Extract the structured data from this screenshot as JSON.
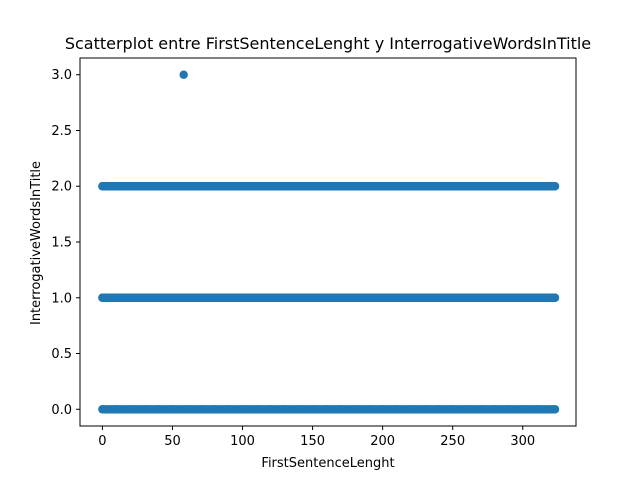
{
  "chart_data": {
    "type": "scatter",
    "title": "Scatterplot entre FirstSentenceLenght y InterrogativeWordsInTitle",
    "xlabel": "FirstSentenceLenght",
    "ylabel": "InterrogativeWordsInTitle",
    "xlim": [
      -16,
      338
    ],
    "ylim": [
      -0.15,
      3.15
    ],
    "xticks": [
      0,
      50,
      100,
      150,
      200,
      250,
      300
    ],
    "yticks": [
      0.0,
      0.5,
      1.0,
      1.5,
      2.0,
      2.5,
      3.0
    ],
    "xtick_labels": [
      "0",
      "50",
      "100",
      "150",
      "200",
      "250",
      "300"
    ],
    "ytick_labels": [
      "0.0",
      "0.5",
      "1.0",
      "1.5",
      "2.0",
      "2.5",
      "3.0"
    ],
    "grid": false,
    "marker_color": "#1f77b4",
    "series": [
      {
        "points": [
          {
            "x": 58,
            "y": 3
          },
          {
            "x": 0,
            "y": 2
          },
          {
            "x": 10,
            "y": 2
          },
          {
            "x": 20,
            "y": 2
          },
          {
            "x": 30,
            "y": 2
          },
          {
            "x": 40,
            "y": 2
          },
          {
            "x": 50,
            "y": 2
          },
          {
            "x": 60,
            "y": 2
          },
          {
            "x": 70,
            "y": 2
          },
          {
            "x": 80,
            "y": 2
          },
          {
            "x": 90,
            "y": 2
          },
          {
            "x": 100,
            "y": 2
          },
          {
            "x": 110,
            "y": 2
          },
          {
            "x": 120,
            "y": 2
          },
          {
            "x": 130,
            "y": 2
          },
          {
            "x": 140,
            "y": 2
          },
          {
            "x": 150,
            "y": 2
          },
          {
            "x": 160,
            "y": 2
          },
          {
            "x": 170,
            "y": 2
          },
          {
            "x": 180,
            "y": 2
          },
          {
            "x": 190,
            "y": 2
          },
          {
            "x": 200,
            "y": 2
          },
          {
            "x": 210,
            "y": 2
          },
          {
            "x": 220,
            "y": 2
          },
          {
            "x": 230,
            "y": 2
          },
          {
            "x": 240,
            "y": 2
          },
          {
            "x": 248,
            "y": 2
          },
          {
            "x": 255,
            "y": 2
          },
          {
            "x": 262,
            "y": 2
          },
          {
            "x": 270,
            "y": 2
          },
          {
            "x": 278,
            "y": 2
          },
          {
            "x": 286,
            "y": 2
          },
          {
            "x": 293,
            "y": 2
          },
          {
            "x": 300,
            "y": 2
          },
          {
            "x": 306,
            "y": 2
          },
          {
            "x": 313,
            "y": 2
          },
          {
            "x": 323,
            "y": 2
          },
          {
            "x": 0,
            "y": 1
          },
          {
            "x": 10,
            "y": 1
          },
          {
            "x": 20,
            "y": 1
          },
          {
            "x": 30,
            "y": 1
          },
          {
            "x": 40,
            "y": 1
          },
          {
            "x": 50,
            "y": 1
          },
          {
            "x": 60,
            "y": 1
          },
          {
            "x": 70,
            "y": 1
          },
          {
            "x": 80,
            "y": 1
          },
          {
            "x": 90,
            "y": 1
          },
          {
            "x": 100,
            "y": 1
          },
          {
            "x": 110,
            "y": 1
          },
          {
            "x": 120,
            "y": 1
          },
          {
            "x": 130,
            "y": 1
          },
          {
            "x": 140,
            "y": 1
          },
          {
            "x": 150,
            "y": 1
          },
          {
            "x": 160,
            "y": 1
          },
          {
            "x": 170,
            "y": 1
          },
          {
            "x": 180,
            "y": 1
          },
          {
            "x": 190,
            "y": 1
          },
          {
            "x": 200,
            "y": 1
          },
          {
            "x": 210,
            "y": 1
          },
          {
            "x": 220,
            "y": 1
          },
          {
            "x": 230,
            "y": 1
          },
          {
            "x": 240,
            "y": 1
          },
          {
            "x": 250,
            "y": 1
          },
          {
            "x": 260,
            "y": 1
          },
          {
            "x": 270,
            "y": 1
          },
          {
            "x": 280,
            "y": 1
          },
          {
            "x": 290,
            "y": 1
          },
          {
            "x": 300,
            "y": 1
          },
          {
            "x": 310,
            "y": 1
          },
          {
            "x": 323,
            "y": 1
          },
          {
            "x": 0,
            "y": 0
          },
          {
            "x": 10,
            "y": 0
          },
          {
            "x": 20,
            "y": 0
          },
          {
            "x": 30,
            "y": 0
          },
          {
            "x": 40,
            "y": 0
          },
          {
            "x": 50,
            "y": 0
          },
          {
            "x": 60,
            "y": 0
          },
          {
            "x": 70,
            "y": 0
          },
          {
            "x": 80,
            "y": 0
          },
          {
            "x": 90,
            "y": 0
          },
          {
            "x": 100,
            "y": 0
          },
          {
            "x": 110,
            "y": 0
          },
          {
            "x": 120,
            "y": 0
          },
          {
            "x": 130,
            "y": 0
          },
          {
            "x": 140,
            "y": 0
          },
          {
            "x": 150,
            "y": 0
          },
          {
            "x": 160,
            "y": 0
          },
          {
            "x": 170,
            "y": 0
          },
          {
            "x": 180,
            "y": 0
          },
          {
            "x": 190,
            "y": 0
          },
          {
            "x": 200,
            "y": 0
          },
          {
            "x": 210,
            "y": 0
          },
          {
            "x": 220,
            "y": 0
          },
          {
            "x": 230,
            "y": 0
          },
          {
            "x": 240,
            "y": 0
          },
          {
            "x": 250,
            "y": 0
          },
          {
            "x": 260,
            "y": 0
          },
          {
            "x": 270,
            "y": 0
          },
          {
            "x": 280,
            "y": 0
          },
          {
            "x": 290,
            "y": 0
          },
          {
            "x": 300,
            "y": 0
          },
          {
            "x": 310,
            "y": 0
          },
          {
            "x": 323,
            "y": 0
          }
        ]
      }
    ]
  }
}
